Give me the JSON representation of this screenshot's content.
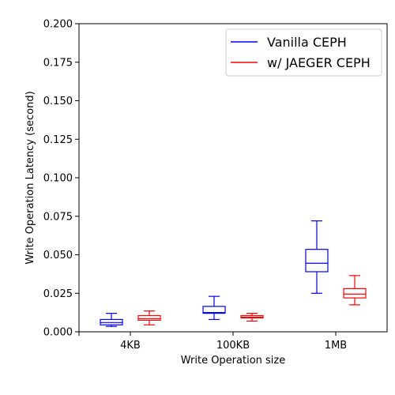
{
  "chart_data": {
    "type": "box",
    "categories": [
      "4KB",
      "100KB",
      "1MB"
    ],
    "xlabel": "Write Operation size",
    "ylabel": "Write Operation Latency (second)",
    "ylim": [
      0,
      0.2
    ],
    "yticks": [
      "0.000",
      "0.025",
      "0.050",
      "0.075",
      "0.100",
      "0.125",
      "0.150",
      "0.175",
      "0.200"
    ],
    "legend_position": "top-right",
    "grid": false,
    "series": [
      {
        "name": "Vanilla CEPH",
        "color": "#0000ff",
        "boxes": [
          {
            "category": "4KB",
            "whisker_low": 0.0035,
            "q1": 0.0045,
            "median": 0.006,
            "q3": 0.008,
            "whisker_high": 0.012
          },
          {
            "category": "100KB",
            "whisker_low": 0.008,
            "q1": 0.012,
            "median": 0.0125,
            "q3": 0.0165,
            "whisker_high": 0.023
          },
          {
            "category": "1MB",
            "whisker_low": 0.025,
            "q1": 0.039,
            "median": 0.0445,
            "q3": 0.0535,
            "whisker_high": 0.072
          }
        ]
      },
      {
        "name": "w/ JAEGER CEPH",
        "color": "#ff0000",
        "boxes": [
          {
            "category": "4KB",
            "whisker_low": 0.0045,
            "q1": 0.0075,
            "median": 0.0085,
            "q3": 0.0105,
            "whisker_high": 0.0135
          },
          {
            "category": "100KB",
            "whisker_low": 0.007,
            "q1": 0.009,
            "median": 0.0095,
            "q3": 0.0105,
            "whisker_high": 0.012
          },
          {
            "category": "1MB",
            "whisker_low": 0.0175,
            "q1": 0.022,
            "median": 0.0245,
            "q3": 0.028,
            "whisker_high": 0.0365
          }
        ]
      }
    ]
  }
}
